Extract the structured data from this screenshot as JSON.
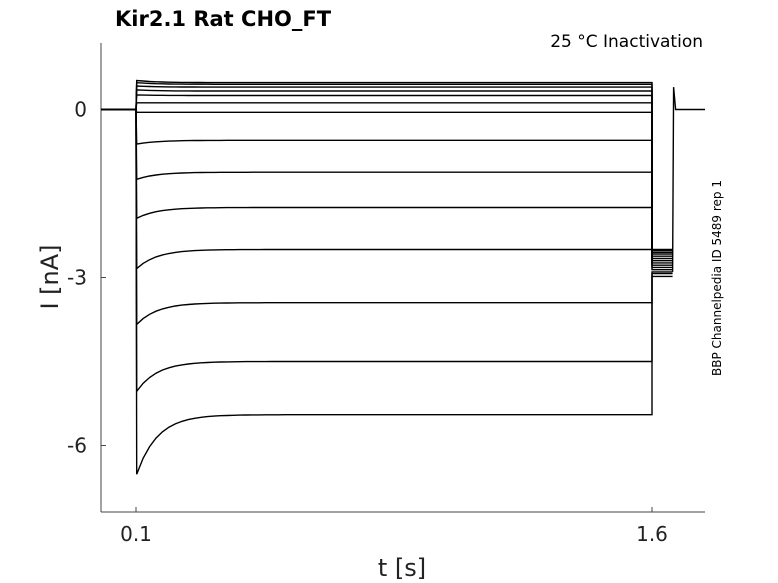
{
  "chart_data": {
    "type": "line",
    "title": "Kir2.1  Rat  CHO_FT",
    "subtitle": "25 °C  Inactivation",
    "xlabel": "t [s]",
    "ylabel": "I [nA]",
    "x_ticks": [
      0.1,
      1.6
    ],
    "y_ticks": [
      0,
      -3,
      -6
    ],
    "xlim": [
      0.06,
      1.6
    ],
    "ylim": [
      -7.2,
      1.2
    ],
    "side_note": "BBP Channelpedia ID 5489 rep 1",
    "grid": false,
    "legend": "none",
    "protocol": {
      "holding_nA": 0.0,
      "step_start_s": 0.1,
      "step_end_s": 1.6,
      "tail_end_s": 1.66
    },
    "series": [
      {
        "steady": 0.48,
        "peak": 0.52,
        "tail": -2.5
      },
      {
        "steady": 0.45,
        "peak": 0.48,
        "tail": -2.52
      },
      {
        "steady": 0.4,
        "peak": 0.42,
        "tail": -2.55
      },
      {
        "steady": 0.33,
        "peak": 0.35,
        "tail": -2.58
      },
      {
        "steady": 0.25,
        "peak": 0.26,
        "tail": -2.62
      },
      {
        "steady": 0.12,
        "peak": 0.12,
        "tail": -2.66
      },
      {
        "steady": -0.05,
        "peak": -0.05,
        "tail": -2.7
      },
      {
        "steady": -0.55,
        "peak": -0.62,
        "tail": -2.74
      },
      {
        "steady": -1.12,
        "peak": -1.25,
        "tail": -2.78
      },
      {
        "steady": -1.75,
        "peak": -1.95,
        "tail": -2.82
      },
      {
        "steady": -2.5,
        "peak": -2.85,
        "tail": -2.86
      },
      {
        "steady": -3.45,
        "peak": -3.85,
        "tail": -2.9
      },
      {
        "steady": -4.5,
        "peak": -5.05,
        "tail": -2.93
      },
      {
        "steady": -5.45,
        "peak": -6.55,
        "tail": -2.98
      }
    ]
  }
}
